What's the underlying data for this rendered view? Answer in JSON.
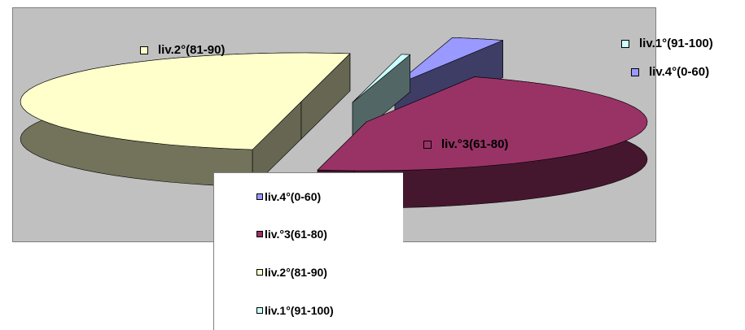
{
  "chart_data": {
    "type": "pie",
    "style": "3d-exploded",
    "slices": [
      {
        "label": "liv.1°(91-100)",
        "value": 0.5,
        "color": "#ccffff"
      },
      {
        "label": "liv.4°(0-60)",
        "value": 3,
        "color": "#9999ff"
      },
      {
        "label": "liv.°3(61-80)",
        "value": 46.5,
        "color": "#993366"
      },
      {
        "label": "liv.2°(81-90)",
        "value": 50,
        "color": "#ffffcc"
      }
    ],
    "legend": {
      "placement": "bottom-center",
      "items": [
        {
          "label": "liv.4°(0-60)",
          "color": "#9999ff"
        },
        {
          "label": "liv.°3(61-80)",
          "color": "#993366"
        },
        {
          "label": "liv.2°(81-90)",
          "color": "#ffffcc"
        },
        {
          "label": "liv.1°(91-100)",
          "color": "#ccffff"
        }
      ]
    },
    "plot_background": "#c0c0c0"
  }
}
